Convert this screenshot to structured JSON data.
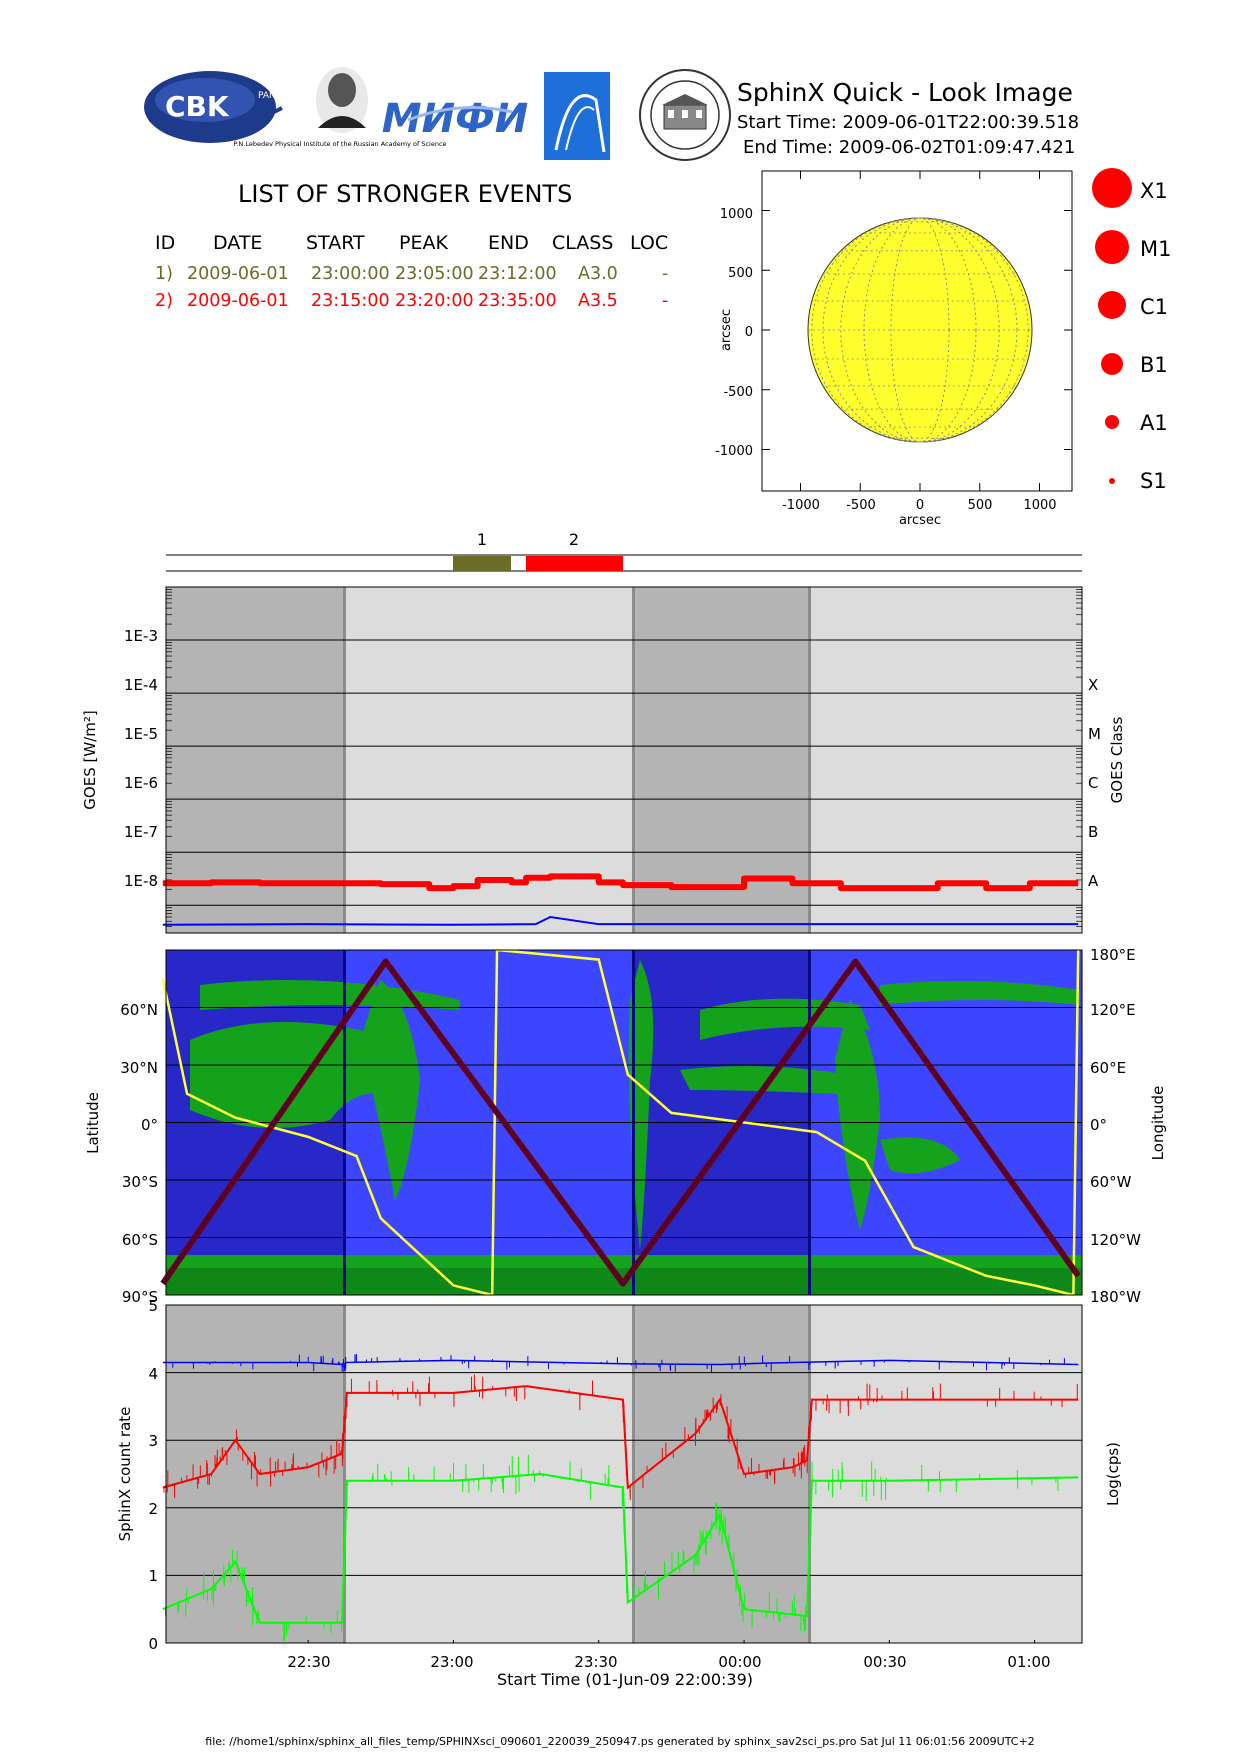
{
  "header": {
    "title": "SphinX Quick - Look Image",
    "start_time": "Start Time: 2009-06-01T22:00:39.518",
    "end_time": "End Time: 2009-06-02T01:09:47.421",
    "logo_cbk": "CBK",
    "logo_cbk_sub": "PAN",
    "logo_lebedev": "P.N.Lebedev Physical Institute of the Russian Academy of Science",
    "logo_miphi": "МИФИ"
  },
  "events": {
    "title": "LIST OF STRONGER EVENTS",
    "headers": [
      "ID",
      "DATE",
      "START",
      "PEAK",
      "END",
      "CLASS",
      "LOC"
    ],
    "rows": [
      {
        "id": "1)",
        "date": "2009-06-01",
        "start": "23:00:00",
        "peak": "23:05:00",
        "end": "23:12:00",
        "cls": "A3.0",
        "loc": "-",
        "color": "#6b6b2a"
      },
      {
        "id": "2)",
        "date": "2009-06-01",
        "start": "23:15:00",
        "peak": "23:20:00",
        "end": "23:35:00",
        "cls": "A3.5",
        "loc": "-",
        "color": "#ff0000"
      }
    ]
  },
  "sun_map": {
    "xlabel": "arcsec",
    "ylabel": "arcsec",
    "xticks": [
      "-1000",
      "-500",
      "0",
      "500",
      "1000"
    ],
    "yticks": [
      "1000",
      "500",
      "0",
      "-500",
      "-1000"
    ],
    "disk_color": "#ffff2e"
  },
  "class_legend": [
    "X1",
    "M1",
    "C1",
    "B1",
    "A1",
    "S1"
  ],
  "timeline": {
    "labels": [
      "1",
      "2"
    ],
    "colors": [
      "#6b6b2a",
      "#ff0000"
    ]
  },
  "goes": {
    "ylabel": "GOES [W/m²]",
    "y2label": "GOES Class",
    "ticks": [
      "1E-3",
      "1E-4",
      "1E-5",
      "1E-6",
      "1E-7",
      "1E-8"
    ],
    "classes": [
      "X",
      "M",
      "C",
      "B",
      "A"
    ]
  },
  "orbit": {
    "ylabel": "Latitude",
    "y2label": "Longitude",
    "lat_ticks": [
      "60°N",
      "30°N",
      "0°",
      "30°S",
      "60°S",
      "90°S"
    ],
    "lon_ticks": [
      "180°E",
      "120°E",
      "60°E",
      "0°",
      "60°W",
      "120°W",
      "180°W"
    ]
  },
  "counts": {
    "ylabel": "SphinX count rate",
    "y2label": "Log(cps)",
    "yticks": [
      "5",
      "4",
      "3",
      "2",
      "1",
      "0"
    ]
  },
  "time_axis": {
    "ticks": [
      "22:30",
      "23:00",
      "23:30",
      "00:00",
      "00:30",
      "01:00"
    ],
    "label": "Start Time (01-Jun-09 22:00:39)"
  },
  "footer": "file: //home1/sphinx/sphinx_all_files_temp/SPHINXsci_090601_220039_250947.ps generated by sphinx_sav2sci_ps.pro Sat Jul 11 06:01:56 2009UTC+2",
  "chart_data": [
    {
      "type": "line",
      "title": "",
      "ylabel": "GOES [W/m²]",
      "yscale": "log",
      "ylim": [
        3e-09,
        0.01
      ],
      "xlim": [
        "22:00:39",
        "01:09:47"
      ],
      "series": [
        {
          "name": "",
          "color": "#ff0000",
          "x": [
            "22:00",
            "22:10",
            "22:20",
            "22:35",
            "22:45",
            "22:55",
            "23:00",
            "23:05",
            "23:12",
            "23:15",
            "23:20",
            "23:30",
            "23:35",
            "23:45",
            "23:50",
            "00:00",
            "00:10",
            "00:20",
            "00:30",
            "00:40",
            "00:50",
            "00:59",
            "01:09"
          ],
          "values": [
            2.6e-08,
            2.7e-08,
            2.6e-08,
            2.6e-08,
            2.5e-08,
            2.1e-08,
            2.3e-08,
            3e-08,
            2.7e-08,
            3.3e-08,
            3.5e-08,
            2.7e-08,
            2.4e-08,
            2.2e-08,
            2.2e-08,
            3.2e-08,
            2.6e-08,
            2.1e-08,
            2.1e-08,
            2.6e-08,
            2.1e-08,
            2.6e-08,
            2.6e-08
          ]
        },
        {
          "name": "",
          "color": "#0000ff",
          "x": [
            "22:00",
            "22:30",
            "23:00",
            "23:17",
            "23:20",
            "23:30",
            "00:00",
            "00:30",
            "01:09"
          ],
          "values": [
            4.3e-09,
            4.4e-09,
            4.3e-09,
            4.4e-09,
            6e-09,
            4.4e-09,
            4.4e-09,
            4.4e-09,
            4.4e-09
          ]
        }
      ]
    },
    {
      "type": "line",
      "ylabel": "Latitude",
      "y2label": "Longitude",
      "ylim": [
        -90,
        90
      ],
      "y2lim": [
        -180,
        180
      ],
      "xlim": [
        "22:00:39",
        "01:09:47"
      ],
      "series": [
        {
          "name": "",
          "color": "#6a0010",
          "x": [
            "22:00",
            "22:46",
            "23:35",
            "00:23",
            "01:09"
          ],
          "values": [
            -84,
            84,
            -84,
            84,
            -80
          ]
        },
        {
          "name": "",
          "color": "#ffff40",
          "x": [
            "22:00",
            "22:05",
            "22:15",
            "22:30",
            "22:40",
            "22:45",
            "23:00",
            "23:08",
            "23:09",
            "23:30",
            "23:36",
            "23:45",
            "00:00",
            "00:15",
            "00:25",
            "00:35",
            "00:50",
            "01:00",
            "01:08",
            "01:09"
          ],
          "values": [
            150,
            30,
            5,
            -15,
            -35,
            -100,
            -170,
            -180,
            180,
            170,
            50,
            10,
            0,
            -10,
            -40,
            -130,
            -160,
            -170,
            -180,
            180
          ]
        }
      ]
    },
    {
      "type": "line",
      "ylabel": "SphinX count rate",
      "y2label": "Log(cps)",
      "ylim": [
        0,
        5
      ],
      "xlim": [
        "22:00:39",
        "01:09:47"
      ],
      "series": [
        {
          "name": "",
          "color": "#0000ff",
          "x": [
            "22:00",
            "22:30",
            "22:37",
            "22:38",
            "23:00",
            "23:35",
            "23:55",
            "00:10",
            "00:30",
            "01:09"
          ],
          "values": [
            4.15,
            4.15,
            4.12,
            4.15,
            4.18,
            4.13,
            4.12,
            4.15,
            4.18,
            4.12
          ]
        },
        {
          "name": "",
          "color": "#ff0000",
          "x": [
            "22:00",
            "22:10",
            "22:15",
            "22:20",
            "22:30",
            "22:37",
            "22:38",
            "23:00",
            "23:15",
            "23:35",
            "23:36",
            "23:50",
            "23:55",
            "00:00",
            "00:10",
            "00:13",
            "00:14",
            "00:30",
            "01:09"
          ],
          "values": [
            2.3,
            2.5,
            3.0,
            2.5,
            2.6,
            2.8,
            3.7,
            3.7,
            3.8,
            3.6,
            2.3,
            3.1,
            3.6,
            2.5,
            2.6,
            2.7,
            3.6,
            3.6,
            3.6
          ]
        },
        {
          "name": "",
          "color": "#00ff00",
          "x": [
            "22:00",
            "22:10",
            "22:15",
            "22:20",
            "22:37",
            "22:38",
            "23:00",
            "23:18",
            "23:35",
            "23:36",
            "23:50",
            "23:55",
            "00:00",
            "00:13",
            "00:14",
            "00:30",
            "01:09"
          ],
          "values": [
            0.5,
            0.8,
            1.2,
            0.3,
            0.3,
            2.4,
            2.4,
            2.5,
            2.3,
            0.6,
            1.3,
            1.9,
            0.5,
            0.4,
            2.4,
            2.4,
            2.45
          ]
        }
      ]
    }
  ]
}
